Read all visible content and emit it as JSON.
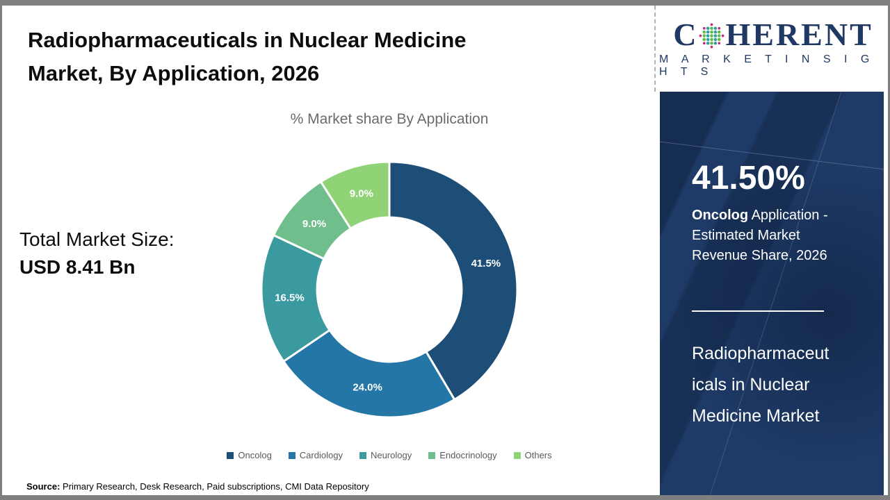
{
  "header": {
    "title_line1": "Radiopharmaceuticals in Nuclear Medicine",
    "title_line2": "Market, By Application, 2026"
  },
  "brand": {
    "logo_prefix": "C",
    "logo_suffix": "HERENT",
    "logo_subtitle": "M A R K E T   I N S I G H T S",
    "logo_color": "#1f3864",
    "globe_colors": {
      "teal": "#2f9fa6",
      "green": "#62bb46",
      "magenta": "#c32b7f"
    }
  },
  "chart_data": {
    "type": "pie",
    "subtype": "donut",
    "title": "% Market share By Application",
    "categories": [
      "Oncolog",
      "Cardiology",
      "Neurology",
      "Endocrinology",
      "Others"
    ],
    "values": [
      41.5,
      24.0,
      16.5,
      9.0,
      9.0
    ],
    "labels": [
      "41.5%",
      "24.0%",
      "16.5%",
      "9.0%",
      "9.0%"
    ],
    "colors": [
      "#1d4e77",
      "#2376a5",
      "#3a9aa0",
      "#6fbe8b",
      "#90d377"
    ],
    "start_angle_deg": 0,
    "direction": "clockwise",
    "inner_radius_ratio": 0.565,
    "legend_position": "bottom",
    "label_color": "#ffffff"
  },
  "left_stats": {
    "label": "Total Market Size:",
    "value": "USD 8.41 Bn"
  },
  "side_panel": {
    "background": "#1e3a66",
    "stat_value": "41.50%",
    "stat_desc_bold": "Oncolog",
    "stat_desc_line1_rest": " Application -",
    "stat_desc_line2": "Estimated Market",
    "stat_desc_line3": "Revenue Share, 2026",
    "market_name_line1": "Radiopharmaceut",
    "market_name_line2": "icals in Nuclear",
    "market_name_line3": "Medicine Market"
  },
  "footer": {
    "source_label": "Source:",
    "source_text": " Primary Research, Desk Research, Paid subscriptions, CMI Data Repository"
  }
}
